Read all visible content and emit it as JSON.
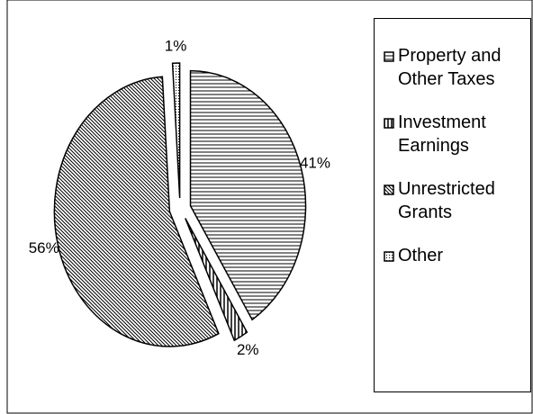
{
  "chart_data": {
    "type": "pie",
    "series": [
      {
        "name": "Property and Other Taxes",
        "values": [
          41
        ],
        "value_labels": [
          "41%"
        ]
      },
      {
        "name": "Investment Earnings",
        "values": [
          2
        ],
        "value_labels": [
          "2%"
        ]
      },
      {
        "name": "Unrestricted Grants",
        "values": [
          56
        ],
        "value_labels": [
          "56%"
        ]
      },
      {
        "name": "Other",
        "values": [
          1
        ],
        "value_labels": [
          "1%"
        ]
      }
    ],
    "legend": "right"
  }
}
